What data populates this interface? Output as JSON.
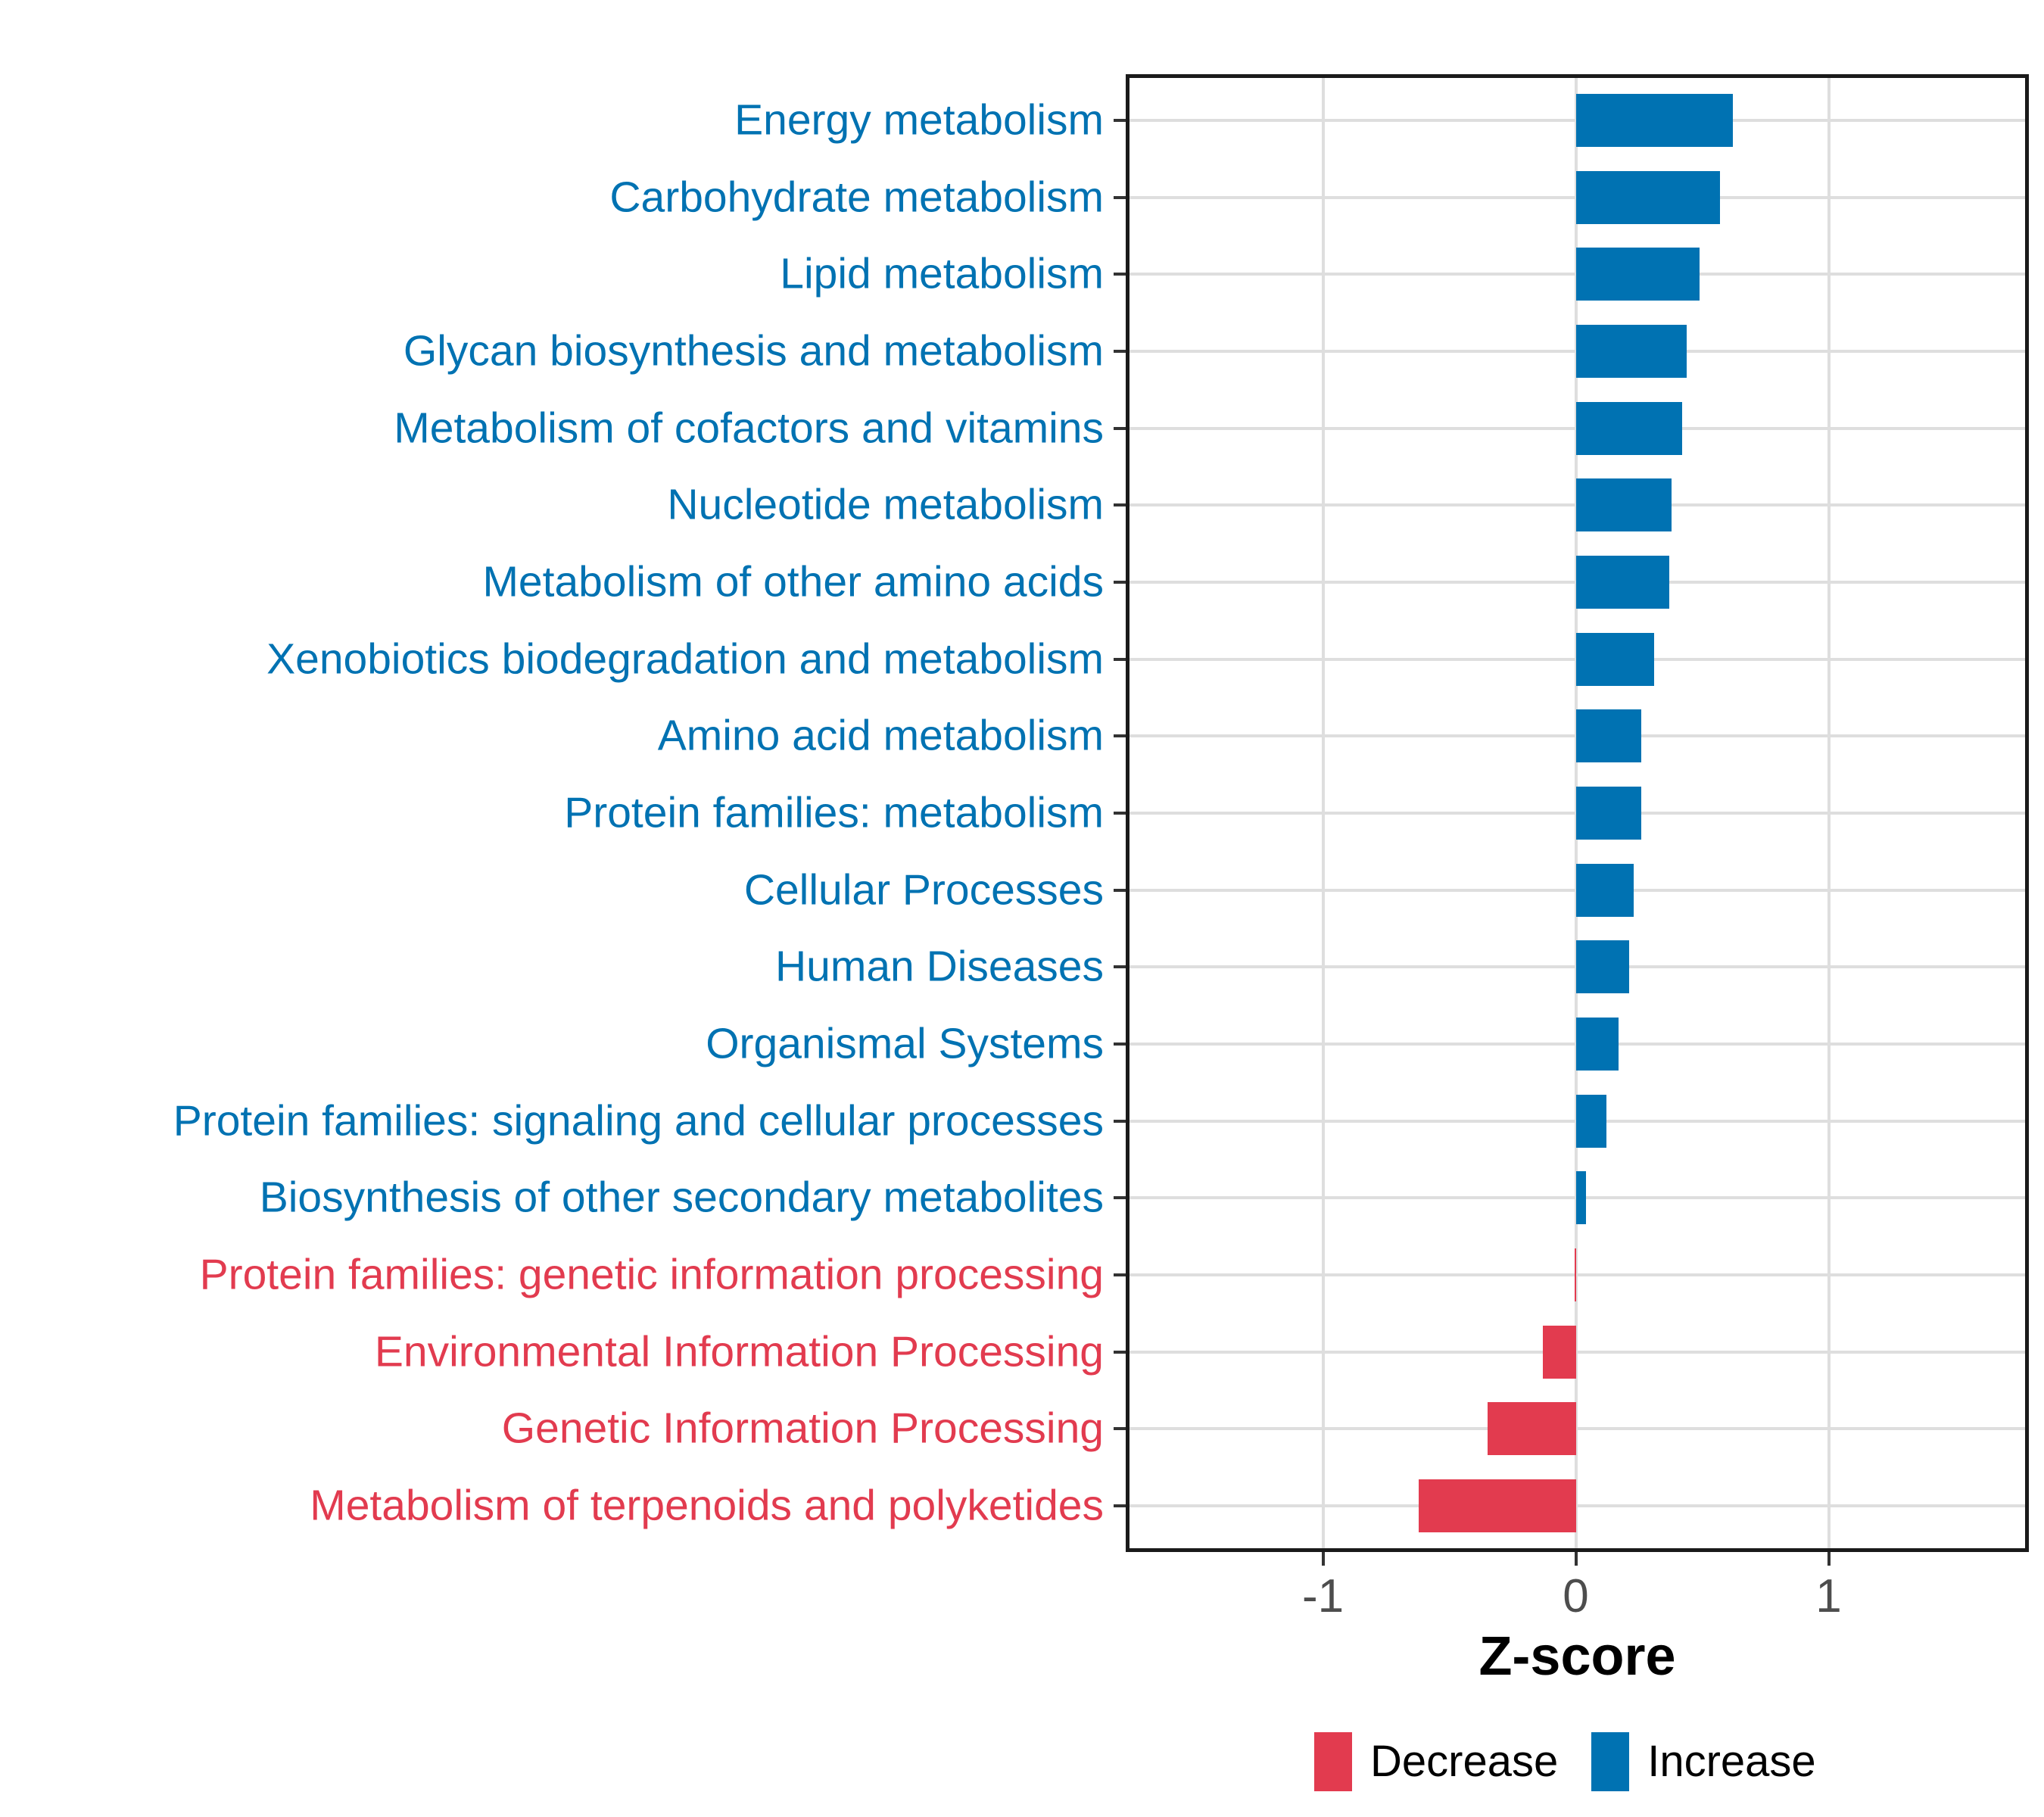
{
  "chart_data": {
    "type": "bar",
    "orientation": "horizontal",
    "title": "",
    "xlabel": "Z-score",
    "ylabel": "",
    "xticks": [
      -1,
      0,
      1
    ],
    "xlim": [
      -1.78,
      1.8
    ],
    "grid": "major",
    "colors": {
      "increase": "#0072B2",
      "decrease": "#E23B4F",
      "gridline": "#DEDEDE",
      "axis_text": "#4D4D4D",
      "panel_border": "#1A1A1A"
    },
    "legend": {
      "position": "bottom-right",
      "items": [
        {
          "label": "Decrease",
          "group": "decrease",
          "color": "#E23B4F"
        },
        {
          "label": "Increase",
          "group": "increase",
          "color": "#0072B2"
        }
      ]
    },
    "bars": [
      {
        "category": "Energy metabolism",
        "value": 0.62,
        "group": "increase"
      },
      {
        "category": "Carbohydrate metabolism",
        "value": 0.57,
        "group": "increase"
      },
      {
        "category": "Lipid metabolism",
        "value": 0.49,
        "group": "increase"
      },
      {
        "category": "Glycan biosynthesis and metabolism",
        "value": 0.44,
        "group": "increase"
      },
      {
        "category": "Metabolism of cofactors and vitamins",
        "value": 0.42,
        "group": "increase"
      },
      {
        "category": "Nucleotide metabolism",
        "value": 0.38,
        "group": "increase"
      },
      {
        "category": "Metabolism of other amino acids",
        "value": 0.37,
        "group": "increase"
      },
      {
        "category": "Xenobiotics biodegradation and metabolism",
        "value": 0.31,
        "group": "increase"
      },
      {
        "category": "Amino acid metabolism",
        "value": 0.26,
        "group": "increase"
      },
      {
        "category": "Protein families: metabolism",
        "value": 0.26,
        "group": "increase"
      },
      {
        "category": "Cellular Processes",
        "value": 0.23,
        "group": "increase"
      },
      {
        "category": "Human Diseases",
        "value": 0.21,
        "group": "increase"
      },
      {
        "category": "Organismal Systems",
        "value": 0.17,
        "group": "increase"
      },
      {
        "category": "Protein families: signaling and cellular processes",
        "value": 0.12,
        "group": "increase"
      },
      {
        "category": "Biosynthesis of other secondary metabolites",
        "value": 0.04,
        "group": "increase"
      },
      {
        "category": "Protein families: genetic information processing",
        "value": -0.005,
        "group": "decrease"
      },
      {
        "category": "Environmental Information Processing",
        "value": -0.13,
        "group": "decrease"
      },
      {
        "category": "Genetic Information Processing",
        "value": -0.35,
        "group": "decrease"
      },
      {
        "category": "Metabolism of terpenoids and polyketides",
        "value": -0.62,
        "group": "decrease"
      }
    ]
  }
}
